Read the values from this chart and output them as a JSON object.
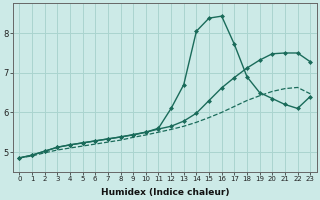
{
  "xlabel": "Humidex (Indice chaleur)",
  "bg_color": "#cceae7",
  "grid_color": "#aad4cf",
  "line_color": "#1a6b5a",
  "xlim": [
    -0.5,
    23.5
  ],
  "ylim": [
    4.5,
    8.75
  ],
  "xticks": [
    0,
    1,
    2,
    3,
    4,
    5,
    6,
    7,
    8,
    9,
    10,
    11,
    12,
    13,
    14,
    15,
    16,
    17,
    18,
    19,
    20,
    21,
    22,
    23
  ],
  "yticks": [
    5,
    6,
    7,
    8
  ],
  "line1_x": [
    0,
    1,
    2,
    3,
    4,
    5,
    6,
    7,
    8,
    9,
    10,
    11,
    12,
    13,
    14,
    15,
    16,
    17,
    18,
    19,
    20,
    21,
    22,
    23
  ],
  "line1_y": [
    4.85,
    4.92,
    5.02,
    5.12,
    5.18,
    5.23,
    5.28,
    5.33,
    5.38,
    5.43,
    5.5,
    5.6,
    6.1,
    6.7,
    8.05,
    8.38,
    8.43,
    7.72,
    6.9,
    6.5,
    6.35,
    6.2,
    6.1,
    6.4
  ],
  "line2_x": [
    0,
    1,
    2,
    3,
    4,
    5,
    6,
    7,
    8,
    9,
    10,
    11,
    12,
    13,
    14,
    15,
    16,
    17,
    18,
    19,
    20,
    21,
    22,
    23
  ],
  "line2_y": [
    4.85,
    4.92,
    5.02,
    5.12,
    5.18,
    5.23,
    5.28,
    5.33,
    5.38,
    5.44,
    5.5,
    5.58,
    5.65,
    5.78,
    5.98,
    6.3,
    6.62,
    6.88,
    7.12,
    7.32,
    7.48,
    7.5,
    7.5,
    7.28
  ],
  "line3_x": [
    0,
    1,
    2,
    3,
    4,
    5,
    6,
    7,
    8,
    9,
    10,
    11,
    12,
    13,
    14,
    15,
    16,
    17,
    18,
    19,
    20,
    21,
    22,
    23
  ],
  "line3_y": [
    4.85,
    4.9,
    4.98,
    5.05,
    5.1,
    5.15,
    5.2,
    5.25,
    5.3,
    5.37,
    5.43,
    5.5,
    5.57,
    5.65,
    5.75,
    5.87,
    6.0,
    6.15,
    6.3,
    6.42,
    6.53,
    6.6,
    6.63,
    6.47
  ]
}
